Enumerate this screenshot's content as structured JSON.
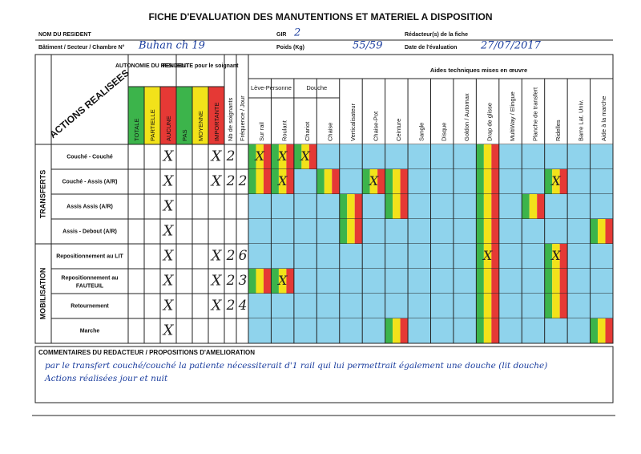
{
  "header": {
    "title": "FICHE D'EVALUATION DES MANUTENTIONS ET MATERIEL A DISPOSITION",
    "fields": [
      {
        "label": "NOM DU RESIDENT"
      },
      {
        "label": "GIR",
        "value": "2"
      },
      {
        "label": "Rédacteur(s) de la fiche"
      },
      {
        "label": "Bâtiment / Secteur / Chambre N°",
        "value": "Buhan ch 19"
      },
      {
        "label": "Poids (Kg)",
        "value": "55/59"
      },
      {
        "label": "Date de l'évaluation",
        "value": "27/07/2017"
      }
    ]
  },
  "table": {
    "actions_heading": "ACTIONS REALISEES",
    "autonomy": {
      "title": "AUTONOMIE DU RESIDENT",
      "levels": [
        {
          "name": "TOTALE",
          "color": "#3cb44b"
        },
        {
          "name": "PARTIELLE",
          "color": "#f2e21a"
        },
        {
          "name": "AUCUNE",
          "color": "#e53935"
        }
      ]
    },
    "penibility": {
      "title": "PENIBILITE pour le soignant",
      "levels": [
        {
          "name": "PAS",
          "color": "#3cb44b"
        },
        {
          "name": "MOYENNE",
          "color": "#f2e21a"
        },
        {
          "name": "IMPORTANTE",
          "color": "#e53935"
        }
      ]
    },
    "staff_heading": "Nb de soignants",
    "frequency_heading": "Fréquence / Jour",
    "aids": {
      "title": "Aides techniques mises en œuvre",
      "groups": [
        {
          "name": "Lève-Personne",
          "columns": [
            "Sur rail",
            "Roulant"
          ]
        },
        {
          "name": "Douche",
          "columns": [
            "Chariot",
            "Chaise"
          ]
        },
        {
          "columns": [
            "Verticalisateur",
            "Chaise-Pot",
            "Ceinture",
            "Sangle",
            "Disque",
            "Goldon / Automax",
            "Drap de glisse",
            "MultiWay / Elingue",
            "Planche de transfert",
            "Ridelles",
            "Barre Lat. Univ.",
            "Aide à la marche"
          ]
        }
      ]
    },
    "sections": [
      {
        "name": "TRANSFERTS",
        "rows": [
          {
            "action": "Couché - Couché",
            "autonomy": [
              null,
              null,
              "X"
            ],
            "penibility": [
              null,
              null,
              "X"
            ],
            "staff": 2,
            "frequency": null,
            "aids_available": [
              true,
              true,
              true,
              false,
              false,
              false,
              false,
              false,
              false,
              false,
              true,
              false,
              false,
              false,
              false,
              false
            ],
            "aid_marks": [
              "X",
              "X",
              "X",
              null,
              null,
              null,
              null,
              null,
              null,
              null,
              null,
              null,
              null,
              null,
              null,
              null
            ]
          },
          {
            "action": "Couché - Assis (A/R)",
            "autonomy": [
              null,
              null,
              "X"
            ],
            "penibility": [
              null,
              null,
              "X"
            ],
            "staff": 2,
            "frequency": 2,
            "aids_available": [
              true,
              true,
              false,
              true,
              false,
              true,
              true,
              false,
              false,
              false,
              true,
              false,
              false,
              true,
              false,
              false
            ],
            "aid_marks": [
              null,
              "X",
              null,
              null,
              null,
              "X",
              null,
              null,
              null,
              null,
              null,
              null,
              null,
              "X",
              null,
              null
            ]
          },
          {
            "action": "Assis Assis (A/R)",
            "autonomy": [
              null,
              null,
              "X"
            ],
            "penibility": [
              null,
              null,
              null
            ],
            "staff": null,
            "frequency": null,
            "aids_available": [
              false,
              false,
              false,
              false,
              true,
              false,
              true,
              false,
              false,
              false,
              true,
              false,
              true,
              false,
              false,
              false
            ],
            "aid_marks": [
              null,
              null,
              null,
              null,
              null,
              null,
              null,
              null,
              null,
              null,
              null,
              null,
              null,
              null,
              null,
              null
            ]
          },
          {
            "action": "Assis - Debout (A/R)",
            "autonomy": [
              null,
              null,
              "X"
            ],
            "penibility": [
              null,
              null,
              null
            ],
            "staff": null,
            "frequency": null,
            "aids_available": [
              false,
              false,
              false,
              false,
              true,
              false,
              false,
              false,
              false,
              false,
              true,
              false,
              false,
              false,
              false,
              true
            ],
            "aid_marks": [
              null,
              null,
              null,
              null,
              null,
              null,
              null,
              null,
              null,
              null,
              null,
              null,
              null,
              null,
              null,
              null
            ]
          }
        ]
      },
      {
        "name": "MOBILISATION",
        "rows": [
          {
            "action": "Repositionnement au LIT",
            "autonomy": [
              null,
              null,
              "X"
            ],
            "penibility": [
              null,
              null,
              "X"
            ],
            "staff": 2,
            "frequency": 6,
            "aids_available": [
              false,
              false,
              false,
              false,
              false,
              false,
              false,
              false,
              false,
              false,
              true,
              false,
              false,
              true,
              false,
              false
            ],
            "aid_marks": [
              null,
              null,
              null,
              null,
              null,
              null,
              null,
              null,
              null,
              null,
              "X",
              null,
              null,
              "X",
              null,
              null
            ]
          },
          {
            "action": "Repositionnement au FAUTEUIL",
            "autonomy": [
              null,
              null,
              "X"
            ],
            "penibility": [
              null,
              null,
              "X"
            ],
            "staff": 2,
            "frequency": 3,
            "aids_available": [
              true,
              true,
              false,
              false,
              false,
              false,
              false,
              false,
              false,
              false,
              true,
              false,
              false,
              true,
              false,
              false
            ],
            "aid_marks": [
              null,
              "X",
              null,
              null,
              null,
              null,
              null,
              null,
              null,
              null,
              null,
              null,
              null,
              null,
              null,
              null
            ]
          },
          {
            "action": "Retournement",
            "autonomy": [
              null,
              null,
              "X"
            ],
            "penibility": [
              null,
              null,
              "X"
            ],
            "staff": 2,
            "frequency": 4,
            "aids_available": [
              false,
              false,
              false,
              false,
              false,
              false,
              false,
              false,
              false,
              false,
              true,
              false,
              false,
              true,
              false,
              false
            ],
            "aid_marks": [
              null,
              null,
              null,
              null,
              null,
              null,
              null,
              null,
              null,
              null,
              null,
              null,
              null,
              null,
              null,
              null
            ]
          },
          {
            "action": "Marche",
            "autonomy": [
              null,
              null,
              "X"
            ],
            "penibility": [
              null,
              null,
              null
            ],
            "staff": null,
            "frequency": null,
            "aids_available": [
              false,
              false,
              false,
              false,
              false,
              false,
              true,
              false,
              false,
              false,
              true,
              false,
              false,
              false,
              false,
              true
            ],
            "aid_marks": [
              null,
              null,
              null,
              null,
              null,
              null,
              null,
              null,
              null,
              null,
              null,
              null,
              null,
              null,
              null,
              null
            ]
          }
        ]
      }
    ]
  },
  "comments": {
    "heading": "COMMENTAIRES DU REDACTEUR / PROPOSITIONS D'AMELIORATION",
    "lines": [
      "par le transfert couché/couché la patiente nécessiterait d'1 rail qui lui permettrait également une douche (lit douche)",
      "Actions réalisées jour et nuit"
    ]
  }
}
